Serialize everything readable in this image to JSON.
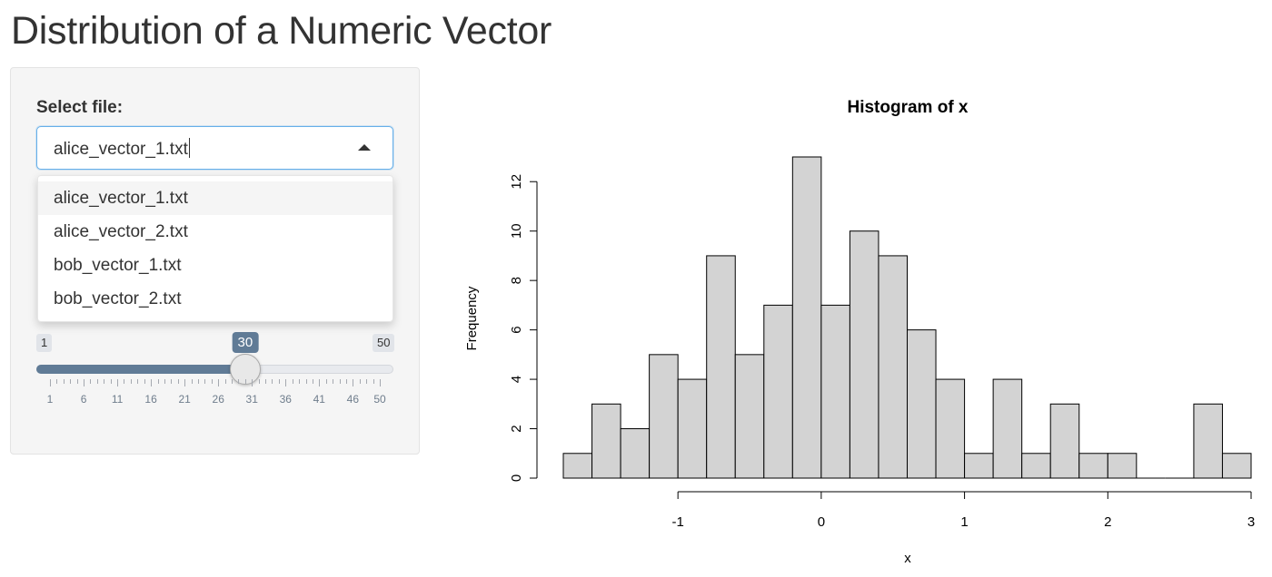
{
  "page": {
    "title": "Distribution of a Numeric Vector"
  },
  "sidebar": {
    "select_label": "Select file:",
    "selected_file": "alice_vector_1.txt",
    "options": [
      "alice_vector_1.txt",
      "alice_vector_2.txt",
      "bob_vector_1.txt",
      "bob_vector_2.txt"
    ],
    "active_option_index": 0,
    "slider": {
      "min": 1,
      "max": 50,
      "value": 30,
      "min_label": "1",
      "max_label": "50",
      "value_label": "30",
      "tick_labels": [
        "1",
        "6",
        "11",
        "16",
        "21",
        "26",
        "31",
        "36",
        "41",
        "46",
        "50"
      ]
    }
  },
  "chart_data": {
    "type": "bar",
    "title": "Histogram of x",
    "xlabel": "x",
    "ylabel": "Frequency",
    "bin_edges": [
      -1.8,
      -1.6,
      -1.4,
      -1.2,
      -1.0,
      -0.8,
      -0.6,
      -0.4,
      -0.2,
      0.0,
      0.2,
      0.4,
      0.6,
      0.8,
      1.0,
      1.2,
      1.4,
      1.6,
      1.8,
      2.0,
      2.2,
      2.4,
      2.6,
      2.8,
      3.0
    ],
    "values": [
      1,
      3,
      2,
      5,
      4,
      9,
      5,
      7,
      13,
      7,
      10,
      9,
      6,
      4,
      1,
      4,
      1,
      3,
      1,
      1,
      0,
      0,
      3,
      1
    ],
    "xlim": [
      -1.8,
      3.0
    ],
    "ylim": [
      0,
      13
    ],
    "x_ticks": [
      -1,
      0,
      1,
      2,
      3
    ],
    "x_tick_labels": [
      "-1",
      "0",
      "1",
      "2",
      "3"
    ],
    "y_ticks": [
      0,
      2,
      4,
      6,
      8,
      10,
      12
    ],
    "y_tick_labels": [
      "0",
      "2",
      "4",
      "6",
      "8",
      "10",
      "12"
    ],
    "bar_fill": "#d3d3d3",
    "bar_stroke": "#000000",
    "grid": false
  }
}
